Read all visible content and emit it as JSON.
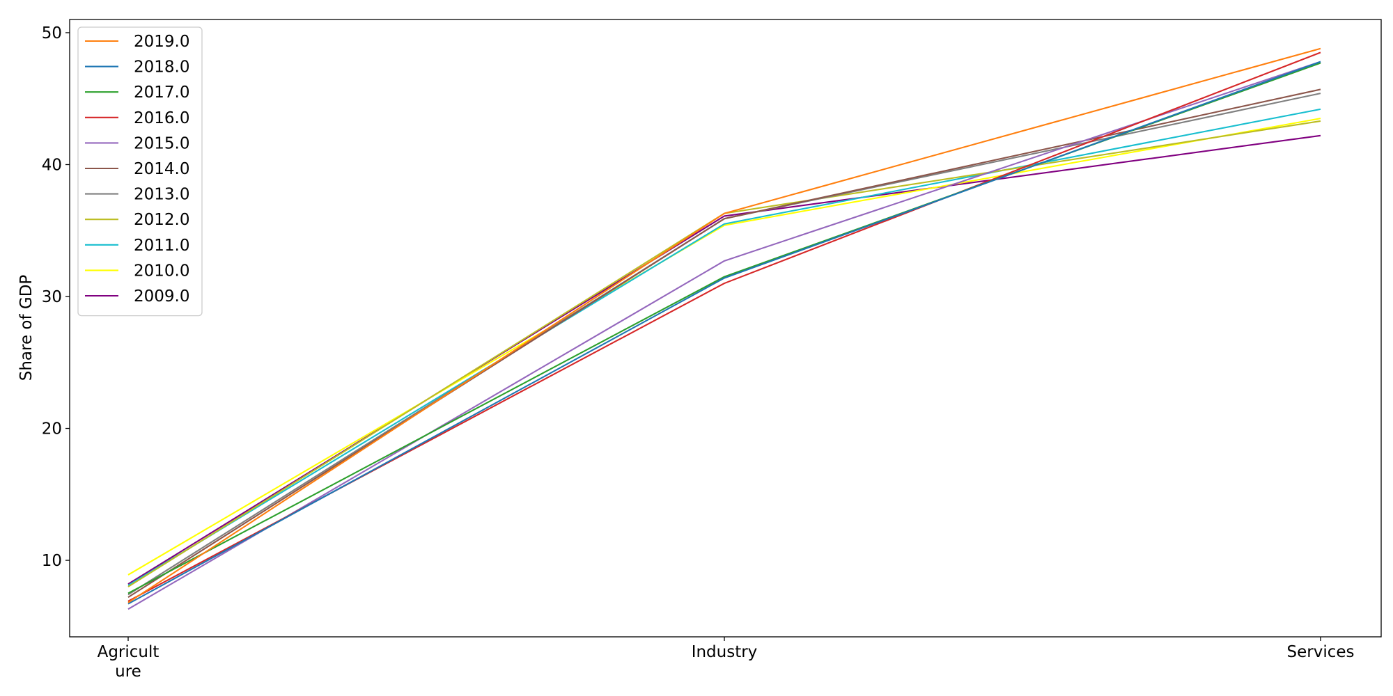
{
  "chart_data": {
    "type": "line",
    "title": "",
    "xlabel": "",
    "ylabel": "Share of GDP",
    "categories": [
      "Agriculture",
      "Industry",
      "Services"
    ],
    "category_tick_lines": [
      [
        "Agricult",
        "ure"
      ],
      [
        "Industry"
      ],
      [
        "Services"
      ]
    ],
    "yticks": [
      10,
      20,
      30,
      40,
      50
    ],
    "ylim": [
      4.2,
      51.0
    ],
    "grid": false,
    "legend_position": "top-left",
    "series": [
      {
        "name": "2019.0",
        "color": "#ff7f0e",
        "values": [
          6.8,
          36.3,
          48.8
        ]
      },
      {
        "name": "2018.0",
        "color": "#1f77b4",
        "values": [
          6.7,
          31.4,
          47.8
        ]
      },
      {
        "name": "2017.0",
        "color": "#2ca02c",
        "values": [
          7.5,
          31.5,
          47.7
        ]
      },
      {
        "name": "2016.0",
        "color": "#d62728",
        "values": [
          6.9,
          31.0,
          48.5
        ]
      },
      {
        "name": "2015.0",
        "color": "#9467bd",
        "values": [
          6.3,
          32.7,
          47.8
        ]
      },
      {
        "name": "2014.0",
        "color": "#8c564b",
        "values": [
          7.2,
          35.9,
          45.7
        ]
      },
      {
        "name": "2013.0",
        "color": "#7f7f7f",
        "values": [
          7.4,
          35.9,
          45.4
        ]
      },
      {
        "name": "2012.0",
        "color": "#bcbd22",
        "values": [
          8.0,
          36.3,
          43.3
        ]
      },
      {
        "name": "2011.0",
        "color": "#17becf",
        "values": [
          8.1,
          35.5,
          44.2
        ]
      },
      {
        "name": "2010.0",
        "color": "#ffff00",
        "values": [
          8.9,
          35.4,
          43.5
        ]
      },
      {
        "name": "2009.0",
        "color": "#800080",
        "values": [
          8.2,
          36.1,
          42.2
        ]
      }
    ]
  }
}
